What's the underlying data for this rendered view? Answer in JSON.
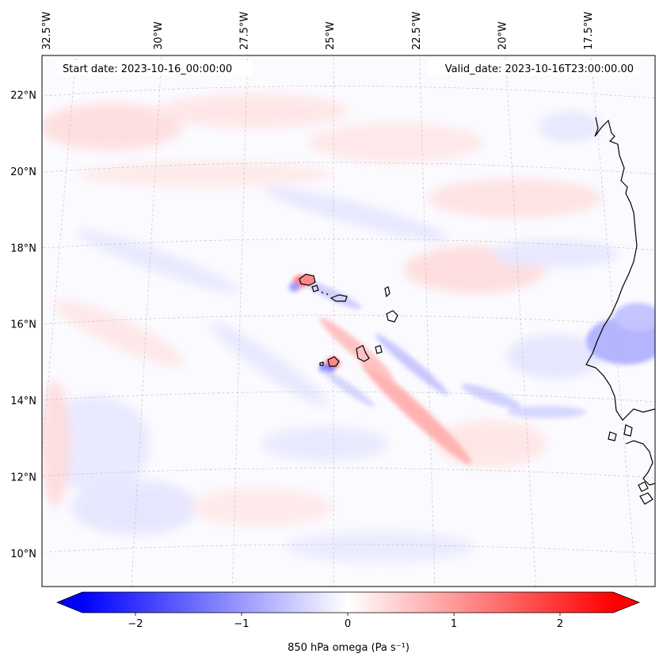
{
  "map": {
    "start_date_label": "Start date: 2023-10-16_00:00:00",
    "valid_date_label": "Valid_date: 2023-10-16T23:00:00.00",
    "lon_labels": [
      "32.5°W",
      "30°W",
      "27.5°W",
      "25°W",
      "22.5°W",
      "20°W",
      "17.5°W"
    ],
    "lat_labels": [
      "22°N",
      "20°N",
      "18°N",
      "16°N",
      "14°N",
      "12°N",
      "10°N"
    ],
    "lon_values": [
      -32.5,
      -30,
      -27.5,
      -25,
      -22.5,
      -20,
      -17.5
    ],
    "lat_values": [
      22,
      20,
      18,
      16,
      14,
      12,
      10
    ],
    "extent": {
      "lon": [
        -32.8,
        -16.4
      ],
      "lat": [
        8.9,
        22.8
      ]
    },
    "field": "850 hPa omega",
    "features": [
      "Cabo Verde islands",
      "West African coastline"
    ]
  },
  "colorbar": {
    "title": "850 hPa omega (Pa s⁻¹)",
    "tick_labels": [
      "−2",
      "−1",
      "0",
      "1",
      "2"
    ],
    "tick_values": [
      -2,
      -1,
      0,
      1,
      2
    ],
    "range": [
      -2.5,
      2.5
    ],
    "colormap": "bwr",
    "extend": "both",
    "colors": {
      "low": "#0000ff",
      "mid": "#ffffff",
      "high": "#ff0000"
    }
  }
}
